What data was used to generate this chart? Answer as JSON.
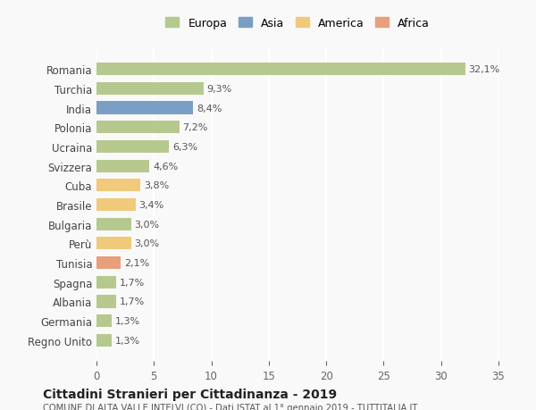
{
  "categories": [
    "Romania",
    "Turchia",
    "India",
    "Polonia",
    "Ucraina",
    "Svizzera",
    "Cuba",
    "Brasile",
    "Bulgaria",
    "Perù",
    "Tunisia",
    "Spagna",
    "Albania",
    "Germania",
    "Regno Unito"
  ],
  "values": [
    32.1,
    9.3,
    8.4,
    7.2,
    6.3,
    4.6,
    3.8,
    3.4,
    3.0,
    3.0,
    2.1,
    1.7,
    1.7,
    1.3,
    1.3
  ],
  "labels": [
    "32,1%",
    "9,3%",
    "8,4%",
    "7,2%",
    "6,3%",
    "4,6%",
    "3,8%",
    "3,4%",
    "3,0%",
    "3,0%",
    "2,1%",
    "1,7%",
    "1,7%",
    "1,3%",
    "1,3%"
  ],
  "colors": [
    "#b5c98e",
    "#b5c98e",
    "#7a9fc4",
    "#b5c98e",
    "#b5c98e",
    "#b5c98e",
    "#f0c97a",
    "#f0c97a",
    "#b5c98e",
    "#f0c97a",
    "#e8a07a",
    "#b5c98e",
    "#b5c98e",
    "#b5c98e",
    "#b5c98e"
  ],
  "continent": [
    "Europa",
    "Europa",
    "Asia",
    "Europa",
    "Europa",
    "Europa",
    "America",
    "America",
    "Europa",
    "America",
    "Africa",
    "Europa",
    "Europa",
    "Europa",
    "Europa"
  ],
  "legend_labels": [
    "Europa",
    "Asia",
    "America",
    "Africa"
  ],
  "legend_colors": [
    "#b5c98e",
    "#7a9fc4",
    "#f0c97a",
    "#e8a07a"
  ],
  "xlim": [
    0,
    35
  ],
  "xticks": [
    0,
    5,
    10,
    15,
    20,
    25,
    30,
    35
  ],
  "title": "Cittadini Stranieri per Cittadinanza - 2019",
  "subtitle": "COMUNE DI ALTA VALLE INTELVI (CO) - Dati ISTAT al 1° gennaio 2019 - TUTTITALIA.IT",
  "bg_color": "#f9f9f9",
  "grid_color": "#ffffff",
  "bar_height": 0.65
}
